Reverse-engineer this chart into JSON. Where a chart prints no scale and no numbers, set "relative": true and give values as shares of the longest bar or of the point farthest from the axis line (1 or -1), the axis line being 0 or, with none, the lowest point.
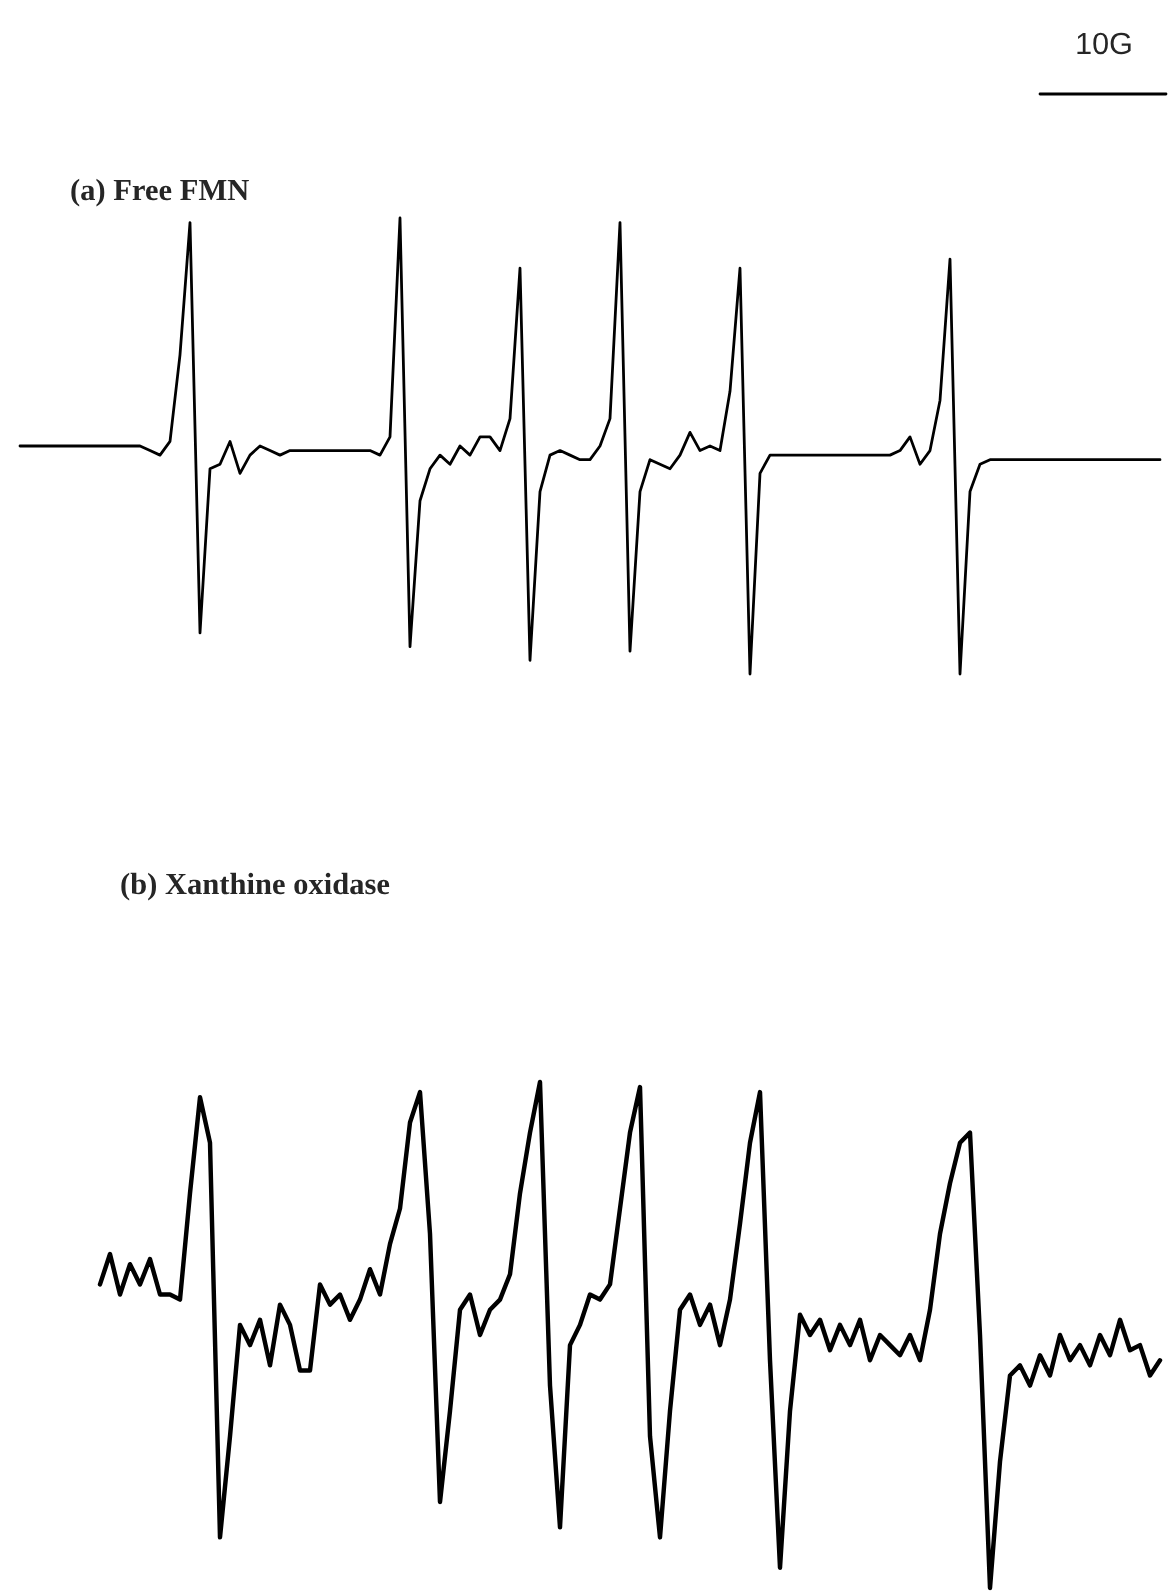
{
  "chart_data": [
    {
      "type": "line",
      "title": "(a) Free FMN",
      "relative": true,
      "annotations": [
        "10G"
      ],
      "categories": [
        null,
        null,
        null,
        null,
        null,
        null,
        null,
        null,
        null,
        null,
        null,
        null,
        null,
        null,
        null,
        null,
        null,
        null,
        null,
        null,
        null,
        null,
        null,
        null,
        null,
        null,
        null,
        null,
        null,
        null,
        null,
        null,
        null,
        null,
        null,
        null,
        null,
        null,
        null,
        null,
        null,
        null,
        null,
        null,
        null,
        null,
        null,
        null,
        null,
        null,
        null,
        null,
        null,
        null,
        null,
        null,
        null,
        null,
        null,
        null,
        null,
        null,
        null,
        null,
        null,
        null,
        null,
        null,
        null,
        null,
        null,
        null,
        null,
        null,
        null,
        null,
        null,
        null,
        null,
        null,
        null,
        null,
        null,
        null,
        null,
        null,
        null,
        null,
        null,
        null,
        null,
        null,
        null,
        null,
        null,
        null,
        null,
        null,
        null,
        null,
        null,
        null,
        null,
        null,
        null,
        null,
        null,
        null,
        null,
        null,
        null,
        null,
        null,
        null,
        null
      ],
      "series": [
        {
          "color": "#000000",
          "values": [
            0.5,
            0.5,
            0.5,
            0.5,
            0.5,
            0.5,
            0.5,
            0.5,
            0.5,
            0.5,
            0.5,
            0.5,
            0.5,
            0.49,
            0.48,
            0.51,
            0.7,
            0.99,
            0.09,
            0.45,
            0.46,
            0.51,
            0.44,
            0.48,
            0.5,
            0.49,
            0.48,
            0.49,
            0.49,
            0.49,
            0.49,
            0.49,
            0.49,
            0.49,
            0.49,
            0.49,
            0.48,
            0.52,
            1.0,
            0.06,
            0.38,
            0.45,
            0.48,
            0.46,
            0.5,
            0.48,
            0.52,
            0.52,
            0.49,
            0.56,
            0.89,
            0.03,
            0.4,
            0.48,
            0.49,
            0.48,
            0.47,
            0.47,
            0.5,
            0.56,
            0.99,
            0.05,
            0.4,
            0.47,
            0.46,
            0.45,
            0.48,
            0.53,
            0.49,
            0.5,
            0.49,
            0.62,
            0.89,
            0.0,
            0.44,
            0.48,
            0.48,
            0.48,
            0.48,
            0.48,
            0.48,
            0.48,
            0.48,
            0.48,
            0.48,
            0.48,
            0.48,
            0.48,
            0.49,
            0.52,
            0.46,
            0.49,
            0.6,
            0.91,
            0.0,
            0.4,
            0.46,
            0.47,
            0.47,
            0.47,
            0.47,
            0.47,
            0.47,
            0.47,
            0.47,
            0.47,
            0.47,
            0.47,
            0.47,
            0.47,
            0.47,
            0.47,
            0.47,
            0.47,
            0.47
          ]
        }
      ]
    },
    {
      "type": "line",
      "title": "(b) Xanthine oxidase",
      "relative": true,
      "categories": [
        null,
        null,
        null,
        null,
        null,
        null,
        null,
        null,
        null,
        null,
        null,
        null,
        null,
        null,
        null,
        null,
        null,
        null,
        null,
        null,
        null,
        null,
        null,
        null,
        null,
        null,
        null,
        null,
        null,
        null,
        null,
        null,
        null,
        null,
        null,
        null,
        null,
        null,
        null,
        null,
        null,
        null,
        null,
        null,
        null,
        null,
        null,
        null,
        null,
        null,
        null,
        null,
        null,
        null,
        null,
        null,
        null,
        null,
        null,
        null,
        null,
        null,
        null,
        null,
        null,
        null,
        null,
        null,
        null,
        null,
        null,
        null,
        null,
        null,
        null,
        null,
        null,
        null,
        null,
        null,
        null,
        null,
        null,
        null,
        null,
        null,
        null,
        null,
        null,
        null,
        null,
        null,
        null,
        null,
        null,
        null,
        null,
        null,
        null,
        null,
        null,
        null,
        null,
        null,
        null,
        null,
        null
      ],
      "series": [
        {
          "color": "#000000",
          "values": [
            0.6,
            0.66,
            0.58,
            0.64,
            0.6,
            0.65,
            0.58,
            0.58,
            0.57,
            0.78,
            0.97,
            0.88,
            0.1,
            0.3,
            0.52,
            0.48,
            0.53,
            0.44,
            0.56,
            0.52,
            0.43,
            0.43,
            0.6,
            0.56,
            0.58,
            0.53,
            0.57,
            0.63,
            0.58,
            0.68,
            0.75,
            0.92,
            0.98,
            0.7,
            0.17,
            0.35,
            0.55,
            0.58,
            0.5,
            0.55,
            0.57,
            0.62,
            0.78,
            0.9,
            1.0,
            0.4,
            0.12,
            0.48,
            0.52,
            0.58,
            0.57,
            0.6,
            0.75,
            0.9,
            0.99,
            0.3,
            0.1,
            0.35,
            0.55,
            0.58,
            0.52,
            0.56,
            0.48,
            0.57,
            0.72,
            0.88,
            0.98,
            0.45,
            0.04,
            0.35,
            0.54,
            0.5,
            0.53,
            0.47,
            0.52,
            0.48,
            0.53,
            0.45,
            0.5,
            0.48,
            0.46,
            0.5,
            0.45,
            0.55,
            0.7,
            0.8,
            0.88,
            0.9,
            0.5,
            0.0,
            0.25,
            0.42,
            0.44,
            0.4,
            0.46,
            0.42,
            0.5,
            0.45,
            0.48,
            0.44,
            0.5,
            0.46,
            0.53,
            0.47,
            0.48,
            0.42,
            0.45
          ]
        }
      ]
    }
  ]
}
